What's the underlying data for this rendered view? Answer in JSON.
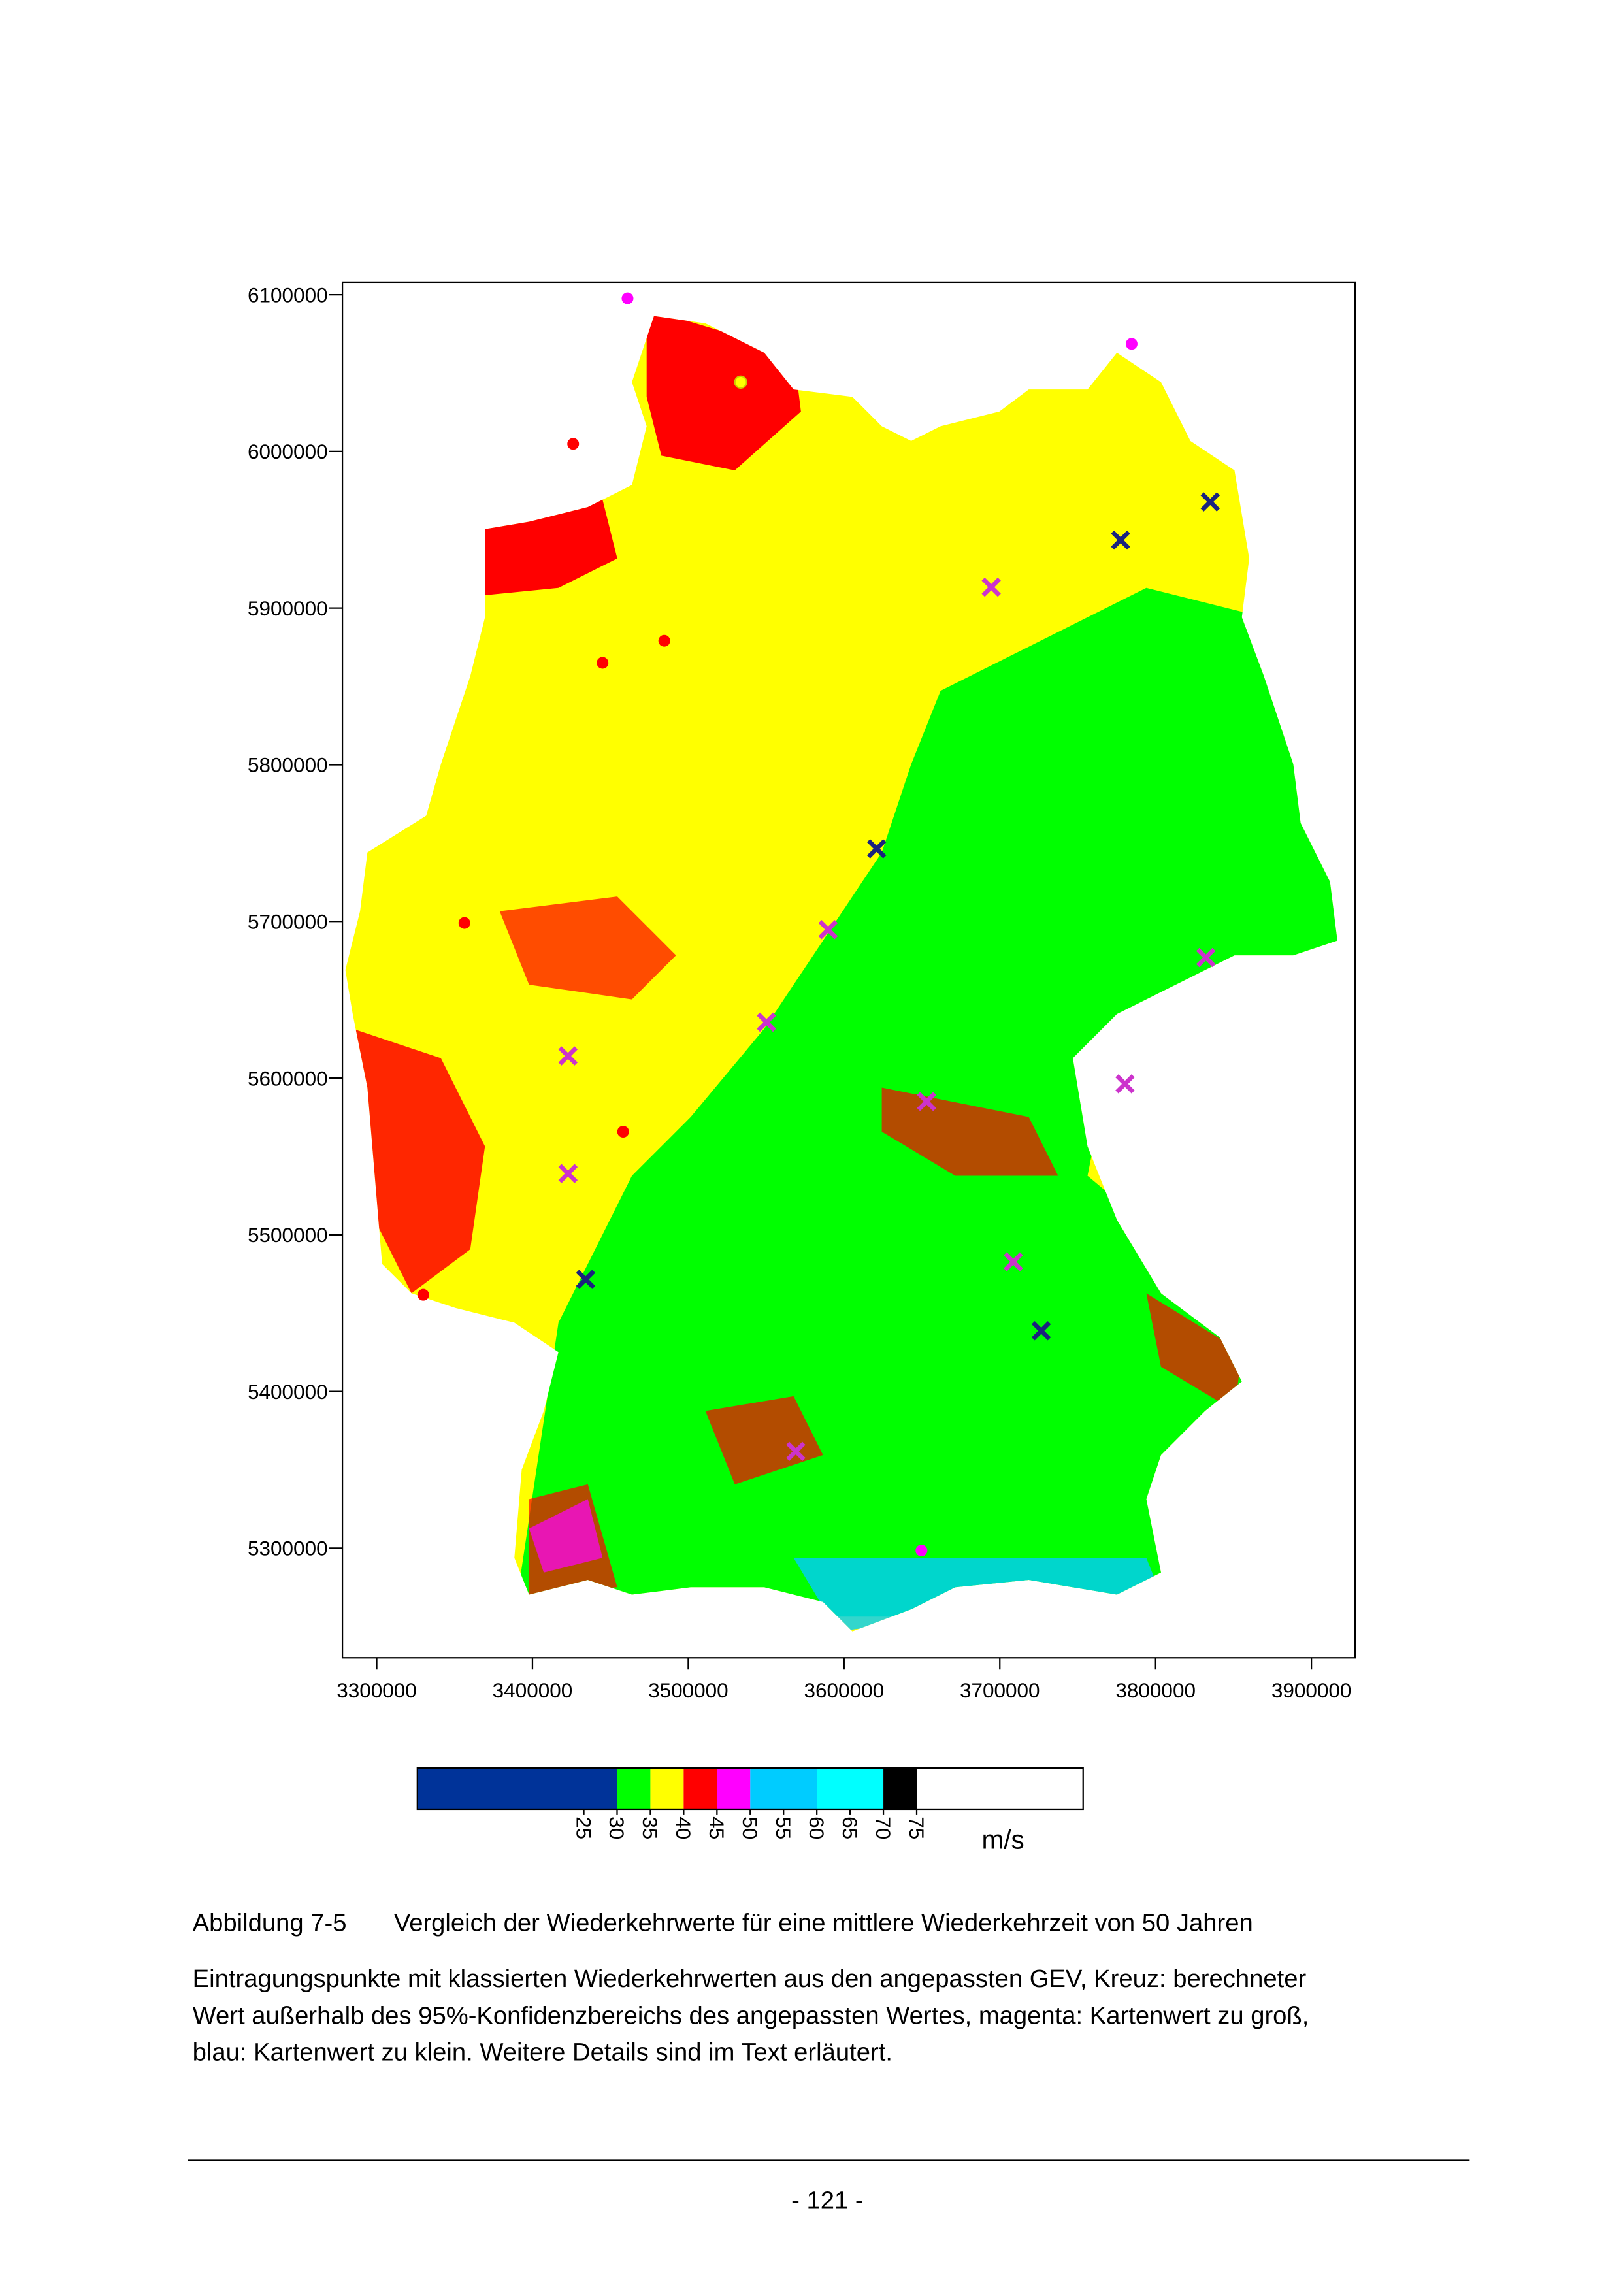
{
  "figure": {
    "xlim": [
      3278000,
      3928000
    ],
    "ylim": [
      5230000,
      6108000
    ],
    "xticks": [
      3300000,
      3400000,
      3500000,
      3600000,
      3700000,
      3800000,
      3900000
    ],
    "yticks": [
      5300000,
      5400000,
      5500000,
      5600000,
      5700000,
      5800000,
      5900000,
      6000000,
      6100000
    ],
    "legend": {
      "lim": [
        0,
        100
      ],
      "ticks": [
        25,
        30,
        35,
        40,
        45,
        50,
        55,
        60,
        65,
        70,
        75
      ],
      "unit": "m/s",
      "classes": [
        {
          "color": "#003399",
          "to": 30
        },
        {
          "color": "#00ff00",
          "to": 35
        },
        {
          "color": "#ffff00",
          "to": 40
        },
        {
          "color": "#ff0000",
          "to": 45
        },
        {
          "color": "#ff00ff",
          "to": 50
        },
        {
          "color": "#00ccff",
          "to": 60
        },
        {
          "color": "#00ffff",
          "to": 70
        },
        {
          "color": "#000000",
          "to": 75
        },
        {
          "color": "#ffffff",
          "to": 100
        }
      ]
    }
  },
  "caption": {
    "label": "Abbildung 7-5",
    "title": "Vergleich der Wiederkehrwerte für eine mittlere Wiederkehrzeit von 50 Jahren"
  },
  "description": [
    "Eintragungspunkte mit klassierten Wiederkehrwerten aus den angepassten GEV, Kreuz: berechneter",
    "Wert außerhalb des 95%-Konfidenzbereichs des angepassten Wertes, magenta: Kartenwert zu groß,",
    "blau: Kartenwert zu klein. Weitere Details sind im Text erläutert."
  ],
  "footer": {
    "page": "- 121 -"
  }
}
